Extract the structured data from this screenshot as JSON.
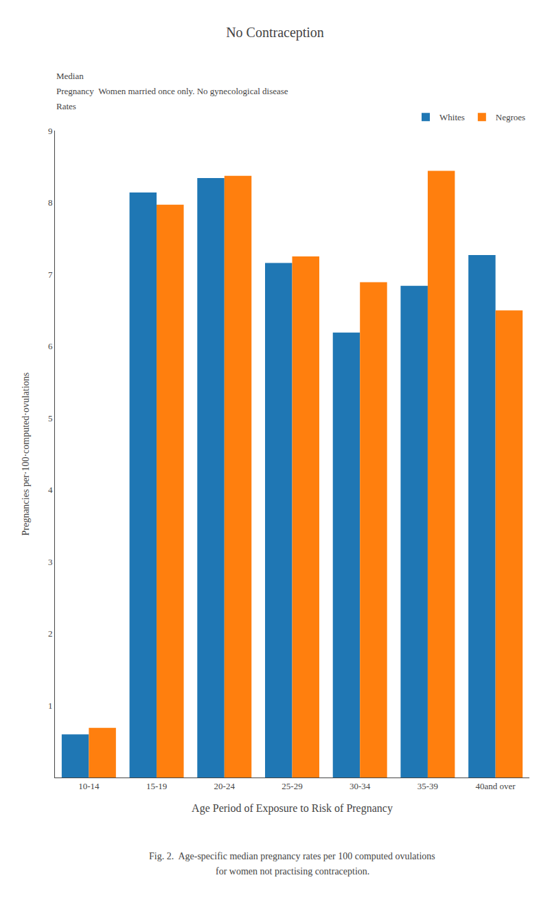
{
  "chart_data": {
    "type": "bar",
    "title": "No Contraception",
    "subtitle": [
      "Median",
      "Pregnancy  Women married once only. No gynecological disease",
      "Rates"
    ],
    "xlabel": "Age Period of Exposure to Risk of Pregnancy",
    "ylabel": "Pregnancies per·100·computed·ovulations",
    "categories": [
      "10-14",
      "15-19",
      "20-24",
      "25-29",
      "30-34",
      "35-39",
      "40and over"
    ],
    "series": [
      {
        "name": "Whites",
        "values": [
          0.6,
          8.14,
          8.34,
          7.16,
          6.19,
          6.84,
          7.27
        ]
      },
      {
        "name": "Negroes",
        "values": [
          0.69,
          7.97,
          8.37,
          7.25,
          6.89,
          8.44,
          6.5
        ]
      }
    ],
    "ylim": [
      0,
      9
    ],
    "yticks": [
      1,
      2,
      3,
      4,
      5,
      6,
      7,
      8,
      9
    ],
    "grid": false,
    "legend": "upper right",
    "annotations": [
      "Fig. 2.  Age-specific median pregnancy rates per 100 computed ovulations",
      "for women not practising contraception."
    ]
  }
}
